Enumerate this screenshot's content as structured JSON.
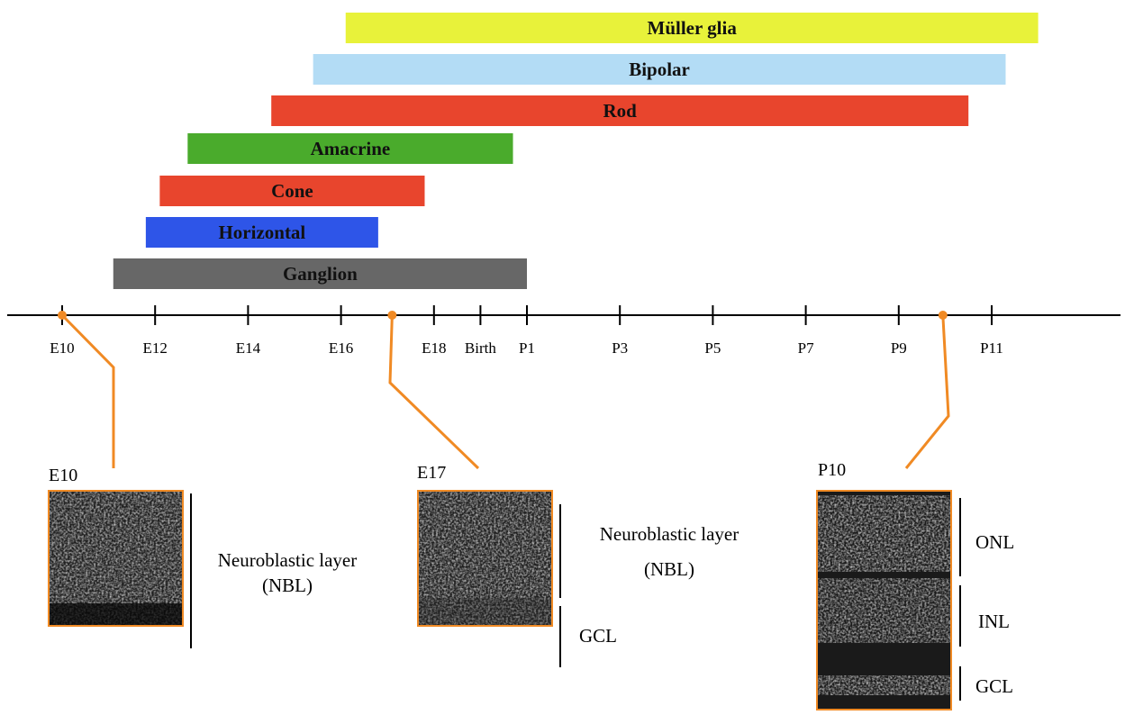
{
  "timeline": {
    "ticks": [
      "E10",
      "E12",
      "E14",
      "E16",
      "E18",
      "Birth",
      "P1",
      "P3",
      "P5",
      "P7",
      "P9",
      "P11"
    ],
    "tick_positions_days": [
      10,
      12,
      14,
      16,
      18,
      19,
      20,
      22,
      24,
      26,
      28,
      30
    ]
  },
  "cell_types": [
    {
      "name": "Müller glia",
      "start": 16.1,
      "end": 31.0,
      "color": "#e8f23a"
    },
    {
      "name": "Bipolar",
      "start": 15.4,
      "end": 30.3,
      "color": "#b3dcf5"
    },
    {
      "name": "Rod",
      "start": 14.5,
      "end": 29.5,
      "color": "#e8452d"
    },
    {
      "name": "Amacrine",
      "start": 12.7,
      "end": 19.7,
      "color": "#4aab2c"
    },
    {
      "name": "Cone",
      "start": 12.1,
      "end": 17.8,
      "color": "#e8452d"
    },
    {
      "name": "Horizontal",
      "start": 11.8,
      "end": 16.8,
      "color": "#2e55e8"
    },
    {
      "name": "Ganglion",
      "start": 11.1,
      "end": 20.0,
      "color": "#676767"
    }
  ],
  "panels": [
    {
      "stage": "E10",
      "marker_day": 10,
      "layers": [
        {
          "label": "Neuroblastic layer",
          "sub": "(NBL)"
        }
      ]
    },
    {
      "stage": "E17",
      "marker_day": 17.1,
      "layers": [
        {
          "label": "Neuroblastic layer",
          "sub": "(NBL)"
        },
        {
          "label": "GCL"
        }
      ]
    },
    {
      "stage": "P10",
      "marker_day": 28.95,
      "layers": [
        {
          "label": "ONL"
        },
        {
          "label": "INL"
        },
        {
          "label": "GCL"
        }
      ]
    }
  ],
  "colors": {
    "accent": "#f08a24",
    "axis": "#000000"
  }
}
